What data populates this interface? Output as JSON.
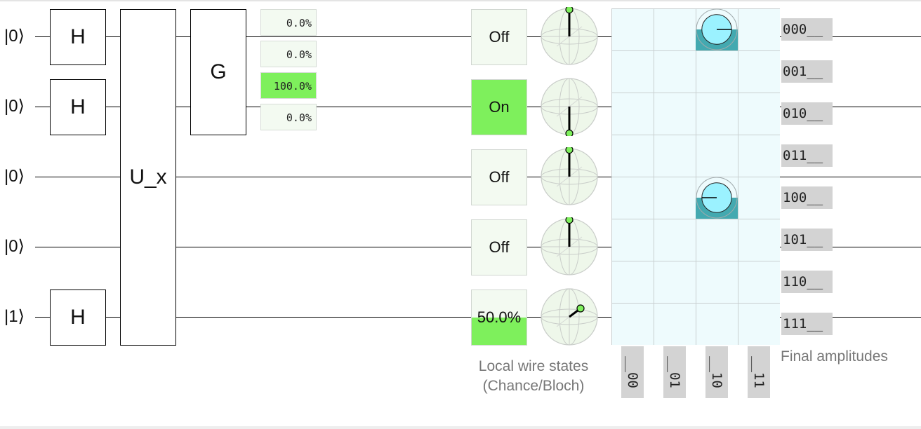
{
  "circuit": {
    "wires": [
      {
        "label": "|0⟩"
      },
      {
        "label": "|0⟩"
      },
      {
        "label": "|0⟩"
      },
      {
        "label": "|0⟩"
      },
      {
        "label": "|1⟩"
      }
    ],
    "gates": {
      "h1": "H",
      "h2": "H",
      "h5": "H",
      "oracle": "U_x",
      "grover": "G"
    }
  },
  "probability_display": {
    "cells": [
      {
        "text": "0.0%",
        "value": 0.0
      },
      {
        "text": "0.0%",
        "value": 0.0
      },
      {
        "text": "100.0%",
        "value": 1.0
      },
      {
        "text": "0.0%",
        "value": 0.0
      }
    ]
  },
  "local_states": {
    "caption_line1": "Local wire states",
    "caption_line2": "(Chance/Bloch)",
    "wires": [
      {
        "text": "Off",
        "chance": 0.0
      },
      {
        "text": "On",
        "chance": 1.0
      },
      {
        "text": "Off",
        "chance": 0.0
      },
      {
        "text": "Off",
        "chance": 0.0
      },
      {
        "text": "50.0%",
        "chance": 0.5
      }
    ]
  },
  "amplitudes": {
    "caption": "Final amplitudes",
    "row_labels": [
      "000__",
      "001__",
      "010__",
      "011__",
      "100__",
      "101__",
      "110__",
      "111__"
    ],
    "col_labels": [
      "__00",
      "__01",
      "__10",
      "__11"
    ],
    "nonzero": [
      {
        "row": 0,
        "col": 2,
        "magnitude": 0.707,
        "phase_deg": 0
      },
      {
        "row": 4,
        "col": 2,
        "magnitude": 0.707,
        "phase_deg": 180
      }
    ]
  },
  "colors": {
    "on_green": "#7ef05c",
    "amp_fill": "#9bf2ff",
    "amp_prob": "#43a9b0"
  }
}
